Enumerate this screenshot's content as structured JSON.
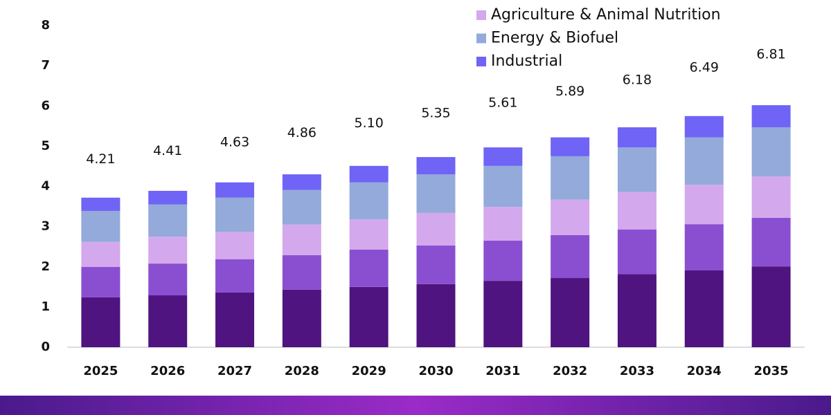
{
  "chart_data": {
    "type": "stacked-bar",
    "categories": [
      "2025",
      "2026",
      "2027",
      "2028",
      "2029",
      "2030",
      "2031",
      "2032",
      "2033",
      "2034",
      "2035"
    ],
    "series": [
      {
        "color": "#4f1480",
        "values": [
          1.24,
          1.29,
          1.36,
          1.43,
          1.5,
          1.57,
          1.65,
          1.72,
          1.82,
          1.91,
          2.01
        ]
      },
      {
        "color": "#8a4fd0",
        "values": [
          0.76,
          0.79,
          0.83,
          0.86,
          0.93,
          0.96,
          1.0,
          1.07,
          1.11,
          1.15,
          1.21
        ]
      },
      {
        "name": "Agriculture & Animal Nutrition",
        "color": "#d4a8ec",
        "values": [
          0.62,
          0.67,
          0.68,
          0.76,
          0.75,
          0.81,
          0.84,
          0.88,
          0.93,
          0.98,
          1.03
        ]
      },
      {
        "name": "Energy & Biofuel",
        "color": "#93aadb",
        "values": [
          0.77,
          0.8,
          0.85,
          0.86,
          0.92,
          0.96,
          1.02,
          1.08,
          1.11,
          1.18,
          1.22
        ]
      },
      {
        "name": "Industrial",
        "color": "#6f64f5",
        "values": [
          0.33,
          0.34,
          0.38,
          0.39,
          0.41,
          0.43,
          0.46,
          0.47,
          0.5,
          0.53,
          0.55
        ]
      }
    ],
    "totals": {
      "values": [
        4.21,
        4.41,
        4.63,
        4.86,
        5.1,
        5.35,
        5.61,
        5.89,
        6.18,
        6.49,
        6.81
      ],
      "value_labels": [
        "4.21",
        "4.41",
        "4.63",
        "4.86",
        "5.10",
        "5.35",
        "5.61",
        "5.89",
        "6.18",
        "6.49",
        "6.81"
      ]
    },
    "ylim": [
      0,
      8
    ],
    "yticks": [
      0,
      1,
      2,
      3,
      4,
      5,
      6,
      7,
      8
    ],
    "grid": false
  }
}
